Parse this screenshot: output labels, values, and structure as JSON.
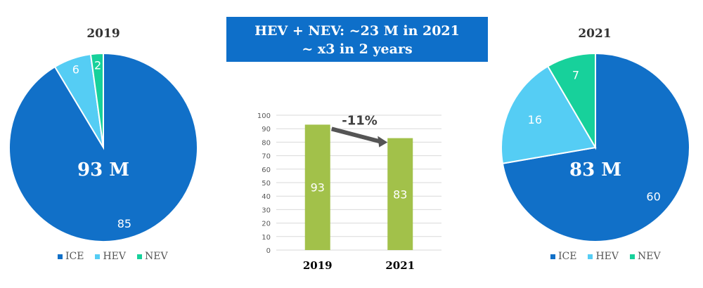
{
  "banner": {
    "line1": "HEV + NEV: ~23 M in 2021",
    "line2": "~ x3 in 2 years"
  },
  "colors": {
    "ICE": "#1170c8",
    "HEV": "#55cdf4",
    "NEV": "#17d19b",
    "bar": "#a2c14a",
    "arrow": "#555555"
  },
  "chart_data": [
    {
      "type": "pie",
      "title": "2019",
      "center_label": "93 M",
      "labels": [
        "ICE",
        "HEV",
        "NEV"
      ],
      "values": [
        85,
        6,
        2
      ],
      "legend": "bottom"
    },
    {
      "type": "bar",
      "title": "",
      "categories": [
        "2019",
        "2021"
      ],
      "values": [
        93,
        83
      ],
      "ylim": [
        0,
        100
      ],
      "yticks": [
        0,
        10,
        20,
        30,
        40,
        50,
        60,
        70,
        80,
        90,
        100
      ],
      "grid": true,
      "annotation": "-11%"
    },
    {
      "type": "pie",
      "title": "2021",
      "center_label": "83 M",
      "labels": [
        "ICE",
        "HEV",
        "NEV"
      ],
      "values": [
        60,
        16,
        7
      ],
      "legend": "bottom"
    }
  ]
}
